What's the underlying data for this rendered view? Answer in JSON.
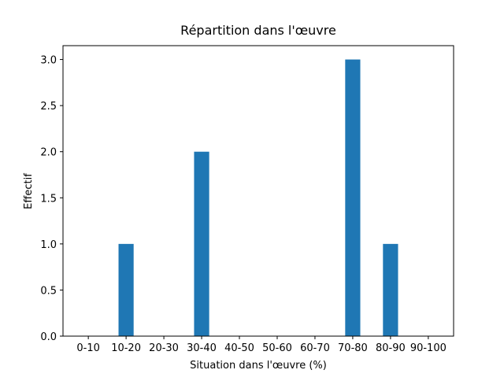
{
  "chart_data": {
    "type": "bar",
    "title": "Répartition dans l'œuvre",
    "x_label": "Situation dans l'œuvre (%)",
    "y_label": "Effectif",
    "categories": [
      "0-10",
      "10-20",
      "20-30",
      "30-40",
      "40-50",
      "50-60",
      "60-70",
      "70-80",
      "80-90",
      "90-100"
    ],
    "values": [
      0,
      1,
      0,
      2,
      0,
      0,
      0,
      3,
      1,
      0
    ],
    "color": "#1f77b4",
    "ylim": [
      0,
      3.15
    ],
    "yticks": [
      {
        "value": 0,
        "label": "0.0"
      },
      0.5,
      {
        "value": 1,
        "label": "1.0"
      },
      1.5,
      {
        "value": 2,
        "label": "2.0"
      },
      2.5,
      {
        "value": 3,
        "label": "3.0"
      }
    ],
    "grid": false
  }
}
